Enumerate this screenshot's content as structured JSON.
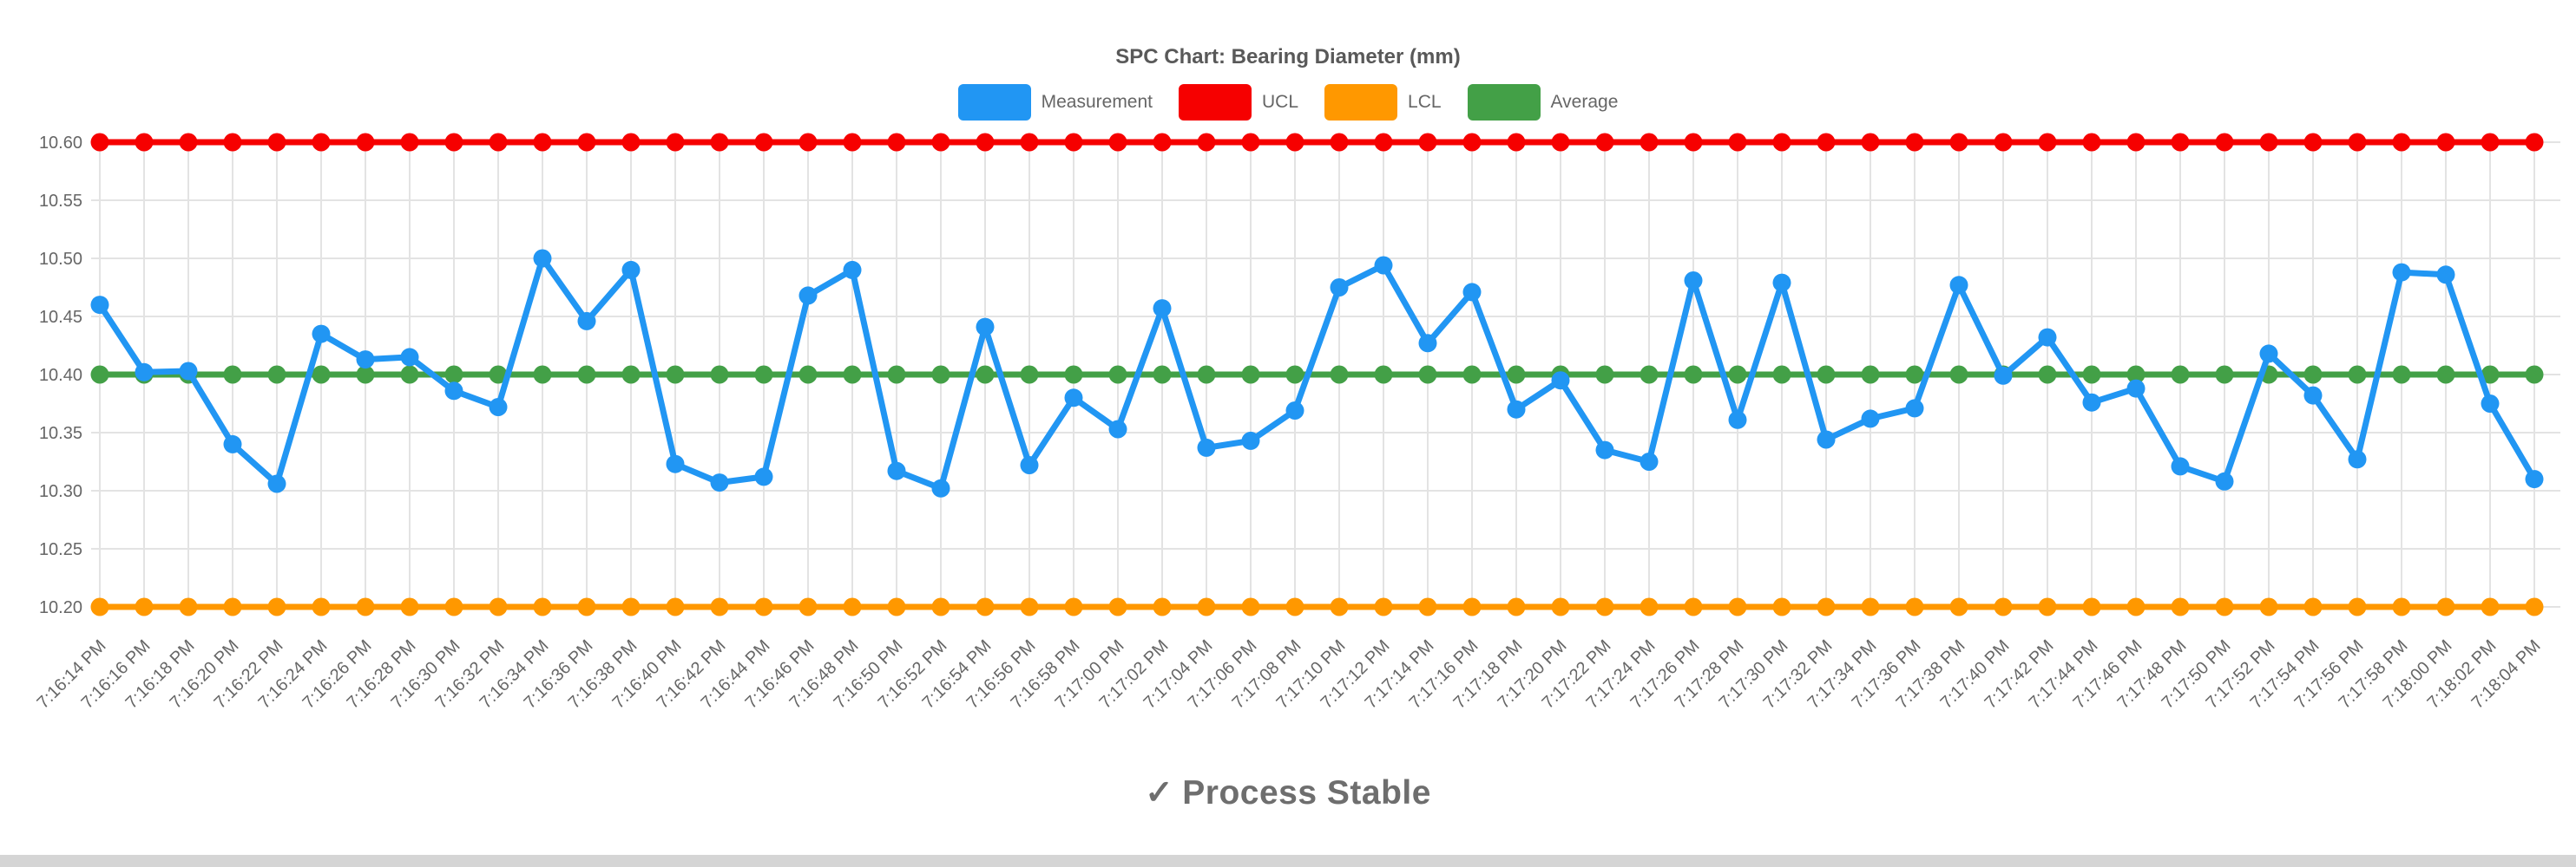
{
  "status": {
    "icon": "✓",
    "text": "Process Stable"
  },
  "chart_data": {
    "type": "line",
    "title": "SPC Chart: Bearing Diameter (mm)",
    "legend_position": "top",
    "grid": true,
    "x_tick_rotation": -45,
    "x_labels": [
      "7:16:14 PM",
      "7:16:16 PM",
      "7:16:18 PM",
      "7:16:20 PM",
      "7:16:22 PM",
      "7:16:24 PM",
      "7:16:26 PM",
      "7:16:28 PM",
      "7:16:30 PM",
      "7:16:32 PM",
      "7:16:34 PM",
      "7:16:36 PM",
      "7:16:38 PM",
      "7:16:40 PM",
      "7:16:42 PM",
      "7:16:44 PM",
      "7:16:46 PM",
      "7:16:48 PM",
      "7:16:50 PM",
      "7:16:52 PM",
      "7:16:54 PM",
      "7:16:56 PM",
      "7:16:58 PM",
      "7:17:00 PM",
      "7:17:02 PM",
      "7:17:04 PM",
      "7:17:06 PM",
      "7:17:08 PM",
      "7:17:10 PM",
      "7:17:12 PM",
      "7:17:14 PM",
      "7:17:16 PM",
      "7:17:18 PM",
      "7:17:20 PM",
      "7:17:22 PM",
      "7:17:24 PM",
      "7:17:26 PM",
      "7:17:28 PM",
      "7:17:30 PM",
      "7:17:32 PM",
      "7:17:34 PM",
      "7:17:36 PM",
      "7:17:38 PM",
      "7:17:40 PM",
      "7:17:42 PM",
      "7:17:44 PM",
      "7:17:46 PM",
      "7:17:48 PM",
      "7:17:50 PM",
      "7:17:52 PM",
      "7:17:54 PM",
      "7:17:56 PM",
      "7:17:58 PM",
      "7:18:00 PM",
      "7:18:02 PM",
      "7:18:04 PM"
    ],
    "y_axis": {
      "min": 10.2,
      "max": 10.6,
      "step": 0.05,
      "tick_labels": [
        "10.60",
        "10.55",
        "10.50",
        "10.45",
        "10.40",
        "10.35",
        "10.30",
        "10.25",
        "10.20"
      ]
    },
    "series": [
      {
        "name": "Measurement",
        "color": "#2196f3",
        "values": [
          10.46,
          10.402,
          10.403,
          10.34,
          10.306,
          10.435,
          10.413,
          10.415,
          10.386,
          10.372,
          10.5,
          10.446,
          10.49,
          10.323,
          10.307,
          10.312,
          10.468,
          10.49,
          10.317,
          10.302,
          10.441,
          10.322,
          10.38,
          10.353,
          10.457,
          10.337,
          10.343,
          10.369,
          10.475,
          10.494,
          10.427,
          10.471,
          10.37,
          10.395,
          10.335,
          10.325,
          10.481,
          10.361,
          10.479,
          10.344,
          10.362,
          10.371,
          10.477,
          10.399,
          10.432,
          10.376,
          10.388,
          10.321,
          10.308,
          10.418,
          10.382,
          10.327,
          10.488,
          10.486,
          10.375,
          10.31
        ]
      },
      {
        "name": "UCL",
        "color": "#f60000",
        "value": 10.6
      },
      {
        "name": "LCL",
        "color": "#ff9800",
        "value": 10.2
      },
      {
        "name": "Average",
        "color": "#43a047",
        "value": 10.4
      }
    ],
    "colors": {
      "grid": "#e3e3e3",
      "tick_text": "#666666",
      "title_text": "#595959",
      "status_text": "#6e6e6e"
    }
  }
}
